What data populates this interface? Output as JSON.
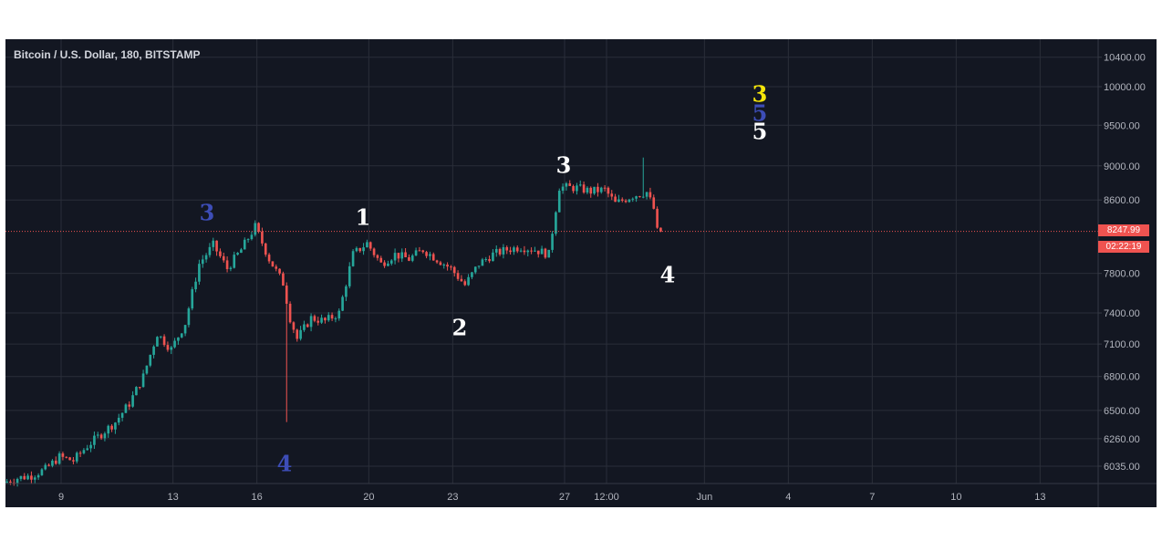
{
  "header": {
    "symbol_title": "Bitcoin / U.S. Dollar, 180, BITSTAMP"
  },
  "colors": {
    "background": "#131722",
    "grid": "#2a2e39",
    "up": "#26a69a",
    "down": "#ef5350",
    "axis_text": "#b2b5be",
    "last_price_line": "#ef5350",
    "label_white": "#ffffff",
    "label_blue": "#3d4db7",
    "label_yellow": "#f5e50a"
  },
  "price_badges": {
    "last_price": "8247.99",
    "countdown": "02:22:19"
  },
  "chart_data": {
    "type": "candlestick",
    "title": "Bitcoin / U.S. Dollar, 180, BITSTAMP",
    "y_scale": "log",
    "y_ticks": [
      "10400.00",
      "10000.00",
      "9500.00",
      "9000.00",
      "8600.00",
      "7800.00",
      "7400.00",
      "7100.00",
      "6800.00",
      "6500.00",
      "6260.00",
      "6035.00"
    ],
    "x_ticks": [
      "9",
      "13",
      "16",
      "20",
      "23",
      "27",
      "12:00",
      "Jun",
      "4",
      "7",
      "10",
      "13"
    ],
    "ylim": [
      5880,
      10650
    ],
    "last_price": 8247.99,
    "grid": true,
    "price_path": [
      [
        "May 7 00:00",
        5905
      ],
      [
        "May 7 12:00",
        5940
      ],
      [
        "May 8 00:00",
        5960
      ],
      [
        "May 8 12:00",
        6010
      ],
      [
        "May 9 00:00",
        6110
      ],
      [
        "May 9 12:00",
        6080
      ],
      [
        "May 10 00:00",
        6200
      ],
      [
        "May 10 12:00",
        6300
      ],
      [
        "May 11 00:00",
        6400
      ],
      [
        "May 11 12:00",
        6560
      ],
      [
        "May 12 00:00",
        6800
      ],
      [
        "May 12 12:00",
        7200
      ],
      [
        "May 13 00:00",
        7050
      ],
      [
        "May 13 12:00",
        7300
      ],
      [
        "May 14 00:00",
        7900
      ],
      [
        "May 14 12:00",
        8100
      ],
      [
        "May 15 00:00",
        7850
      ],
      [
        "May 15 12:00",
        8050
      ],
      [
        "May 16 00:00",
        8300
      ],
      [
        "May 16 12:00",
        7950
      ],
      [
        "May 17 00:00",
        7700
      ],
      [
        "May 17 06:00",
        7350
      ],
      [
        "May 17 12:00",
        7150
      ],
      [
        "May 18 00:00",
        7350
      ],
      [
        "May 18 12:00",
        7320
      ],
      [
        "May 19 00:00",
        7400
      ],
      [
        "May 19 12:00",
        8000
      ],
      [
        "May 20 00:00",
        8120
      ],
      [
        "May 20 12:00",
        7900
      ],
      [
        "May 21 00:00",
        8000
      ],
      [
        "May 21 12:00",
        7950
      ],
      [
        "May 22 00:00",
        8050
      ],
      [
        "May 22 12:00",
        7950
      ],
      [
        "May 23 00:00",
        7850
      ],
      [
        "May 23 12:00",
        7680
      ],
      [
        "May 24 00:00",
        7900
      ],
      [
        "May 24 12:00",
        8000
      ],
      [
        "May 25 00:00",
        8050
      ],
      [
        "May 25 12:00",
        8080
      ],
      [
        "May 26 00:00",
        8050
      ],
      [
        "May 26 12:00",
        8000
      ],
      [
        "May 26 21:00",
        8750
      ],
      [
        "May 27 12:00",
        8740
      ],
      [
        "May 28 00:00",
        8700
      ],
      [
        "May 28 12:00",
        8720
      ],
      [
        "May 28 21:00",
        8560
      ],
      [
        "May 29 12:00",
        8650
      ],
      [
        "May 30 00:00",
        8690
      ],
      [
        "May 30 06:00",
        8500
      ],
      [
        "May 30 09:00",
        8248
      ]
    ],
    "extremes": {
      "low_May_17": 6400,
      "high_May_30": 9100
    }
  },
  "wave_labels": [
    {
      "text": "3",
      "color": "blue",
      "near": "May 14 peak"
    },
    {
      "text": "4",
      "color": "blue",
      "near": "May 17 low"
    },
    {
      "text": "1",
      "color": "white",
      "near": "May 20 high"
    },
    {
      "text": "2",
      "color": "white",
      "near": "May 23 low"
    },
    {
      "text": "3",
      "color": "white",
      "near": "May 27 high"
    },
    {
      "text": "4",
      "color": "white",
      "near": "May 30 current"
    },
    {
      "text": "3",
      "color": "yellow",
      "near": "future target"
    },
    {
      "text": "5",
      "color": "blue",
      "near": "future target"
    },
    {
      "text": "5",
      "color": "white",
      "near": "future target"
    }
  ]
}
